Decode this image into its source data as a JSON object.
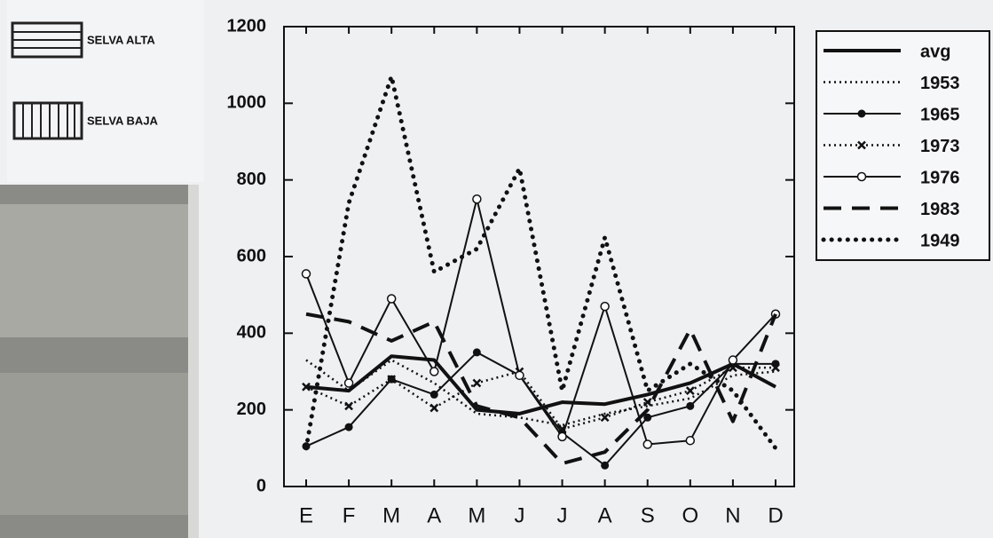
{
  "map_legend": {
    "items": [
      "SELVA ALTA",
      "SELVA BAJA"
    ]
  },
  "chart_data": {
    "type": "line",
    "categories": [
      "E",
      "F",
      "M",
      "A",
      "M",
      "J",
      "J",
      "A",
      "S",
      "O",
      "N",
      "D"
    ],
    "ylim": [
      0,
      1200
    ],
    "yticks": [
      0,
      200,
      400,
      600,
      800,
      1000,
      1200
    ],
    "legend": "outside-right",
    "series": [
      {
        "name": "avg",
        "color": "#111111",
        "line": "solid-thick",
        "marker": "none",
        "values": [
          260,
          250,
          340,
          330,
          200,
          190,
          220,
          215,
          240,
          270,
          320,
          260
        ]
      },
      {
        "name": "1953",
        "color": "#111111",
        "line": "dotted",
        "marker": "none",
        "values": [
          330,
          250,
          330,
          270,
          190,
          180,
          160,
          190,
          210,
          230,
          290,
          300
        ]
      },
      {
        "name": "1965",
        "color": "#111111",
        "line": "solid",
        "marker": "filled-circle",
        "values": [
          105,
          155,
          280,
          240,
          350,
          290,
          140,
          55,
          180,
          210,
          320,
          320
        ]
      },
      {
        "name": "1973",
        "color": "#111111",
        "line": "dotted",
        "marker": "x",
        "values": [
          260,
          210,
          280,
          205,
          270,
          300,
          150,
          180,
          220,
          250,
          310,
          310
        ]
      },
      {
        "name": "1976",
        "color": "#111111",
        "line": "solid",
        "marker": "open-circle",
        "values": [
          555,
          270,
          490,
          300,
          750,
          290,
          130,
          470,
          110,
          120,
          330,
          450
        ]
      },
      {
        "name": "1983",
        "color": "#111111",
        "line": "dashed",
        "marker": "none",
        "values": [
          450,
          430,
          380,
          430,
          210,
          180,
          60,
          90,
          200,
          410,
          170,
          450
        ]
      },
      {
        "name": "1949",
        "color": "#111111",
        "line": "dotted-thick",
        "marker": "none",
        "values": [
          100,
          740,
          1070,
          560,
          620,
          830,
          250,
          650,
          250,
          320,
          250,
          100
        ]
      }
    ]
  }
}
